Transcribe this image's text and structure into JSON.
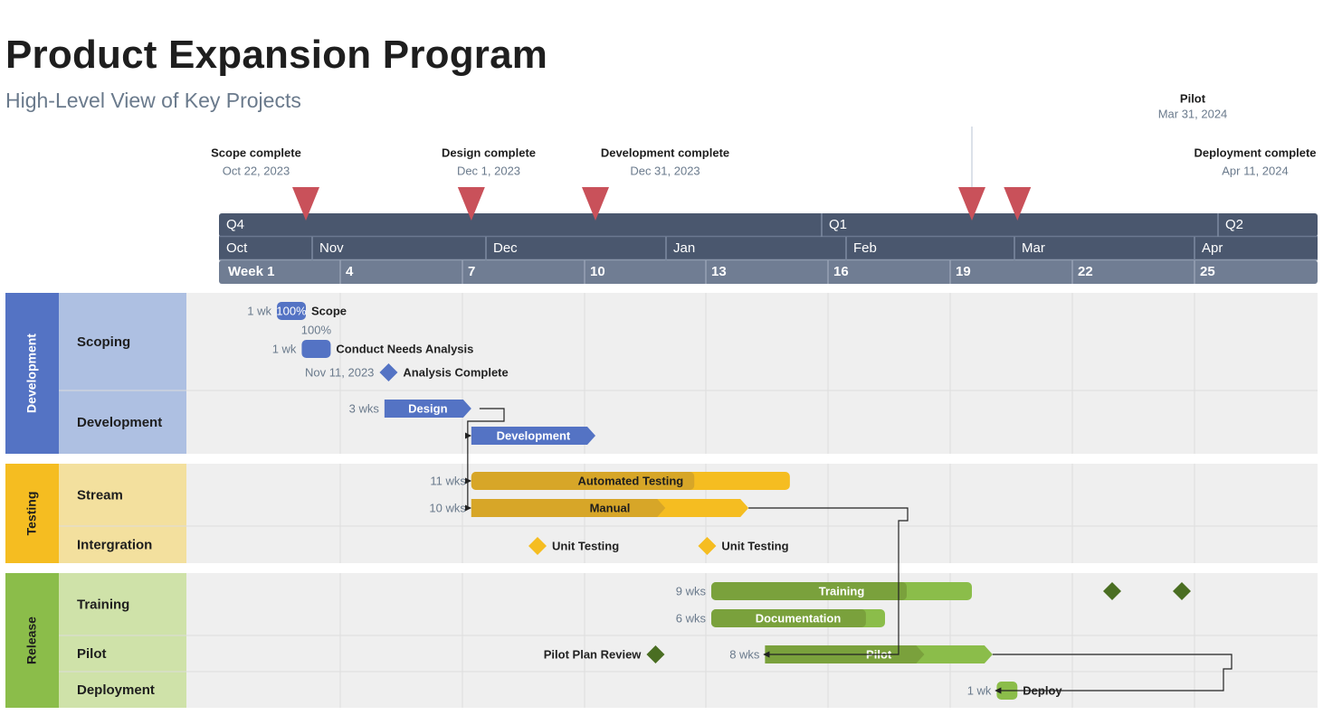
{
  "title": "Product Expansion Program",
  "subtitle": "High-Level View of Key Projects",
  "colors": {
    "milestone_marker": "#c9515a",
    "header_dark": "#4a576e",
    "header_light": "#707d93",
    "development": "#5473c4",
    "development_light": "#aec0e2",
    "testing": "#f5bd21",
    "testing_dark": "#d7a628",
    "testing_light": "#f3e09e",
    "release": "#8bbd4a",
    "release_dark": "#7aa13c",
    "release_light": "#cfe2a9",
    "milestone_green": "#4a6e22",
    "row_bg": "#efefef"
  },
  "chart_data": {
    "type": "gantt",
    "timescale": {
      "quarters": [
        "Q4",
        "Q1",
        "Q2"
      ],
      "months": [
        "Oct",
        "Nov",
        "Dec",
        "Jan",
        "Feb",
        "Mar",
        "Apr"
      ],
      "weeks": [
        "Week 1",
        "4",
        "7",
        "10",
        "13",
        "16",
        "19",
        "22",
        "25"
      ]
    },
    "key_milestones": [
      {
        "name": "Scope complete",
        "date": "Oct 22, 2023"
      },
      {
        "name": "Design complete",
        "date": "Dec 1, 2023"
      },
      {
        "name": "Development complete",
        "date": "Dec 31, 2023"
      },
      {
        "name": "Pilot",
        "date": "Mar 31, 2024"
      },
      {
        "name": "Deployment complete",
        "date": "Apr 11, 2024"
      }
    ],
    "groups": [
      {
        "name": "Development",
        "rows": [
          "Scoping",
          "Development"
        ]
      },
      {
        "name": "Testing",
        "rows": [
          "Stream",
          "Intergration"
        ]
      },
      {
        "name": "Release",
        "rows": [
          "Training",
          "Pilot",
          "Deployment"
        ]
      }
    ],
    "tasks": [
      {
        "name": "Scope",
        "duration": "1 wk",
        "progress_label": "100%",
        "start": "Oct 15, 2023",
        "end": "Oct 22, 2023"
      },
      {
        "name": "Conduct Needs Analysis",
        "duration": "1 wk",
        "progress_label": "100%",
        "start": "Oct 21, 2023",
        "end": "Oct 28, 2023"
      },
      {
        "name": "Design",
        "duration": "3 wks",
        "start": "Nov 10, 2023",
        "end": "Dec 1, 2023"
      },
      {
        "name": "Development",
        "start": "Dec 1, 2023",
        "end": "Dec 31, 2023"
      },
      {
        "name": "Automated Testing",
        "duration": "11 wks",
        "start": "Dec 1, 2023",
        "end": "Feb 16, 2024",
        "progress": 0.7
      },
      {
        "name": "Manual",
        "duration": "10 wks",
        "start": "Dec 1, 2023",
        "end": "Feb 6, 2024",
        "progress": 0.7
      },
      {
        "name": "Training",
        "duration": "9 wks",
        "start": "Jan 28, 2024",
        "end": "Mar 31, 2024",
        "progress": 0.75
      },
      {
        "name": "Documentation",
        "duration": "6 wks",
        "start": "Jan 28, 2024",
        "end": "Mar 10, 2024",
        "progress": 0.89
      },
      {
        "name": "Pilot",
        "duration": "8 wks",
        "start": "Feb 10, 2024",
        "end": "Apr 5, 2024",
        "progress": 0.7
      },
      {
        "name": "Deploy",
        "duration": "1 wk",
        "start": "Apr 6, 2024",
        "end": "Apr 11, 2024"
      }
    ],
    "milestones": [
      {
        "name": "Analysis Complete",
        "date_label": "Nov 11, 2023",
        "date": "Nov 11, 2023"
      },
      {
        "name": "Unit Testing",
        "date": "Dec 17, 2023"
      },
      {
        "name": "Unit Testing",
        "date": "Jan 27, 2024"
      },
      {
        "name": "Pilot Plan Review",
        "date": "Jan 27, 2024"
      }
    ]
  }
}
